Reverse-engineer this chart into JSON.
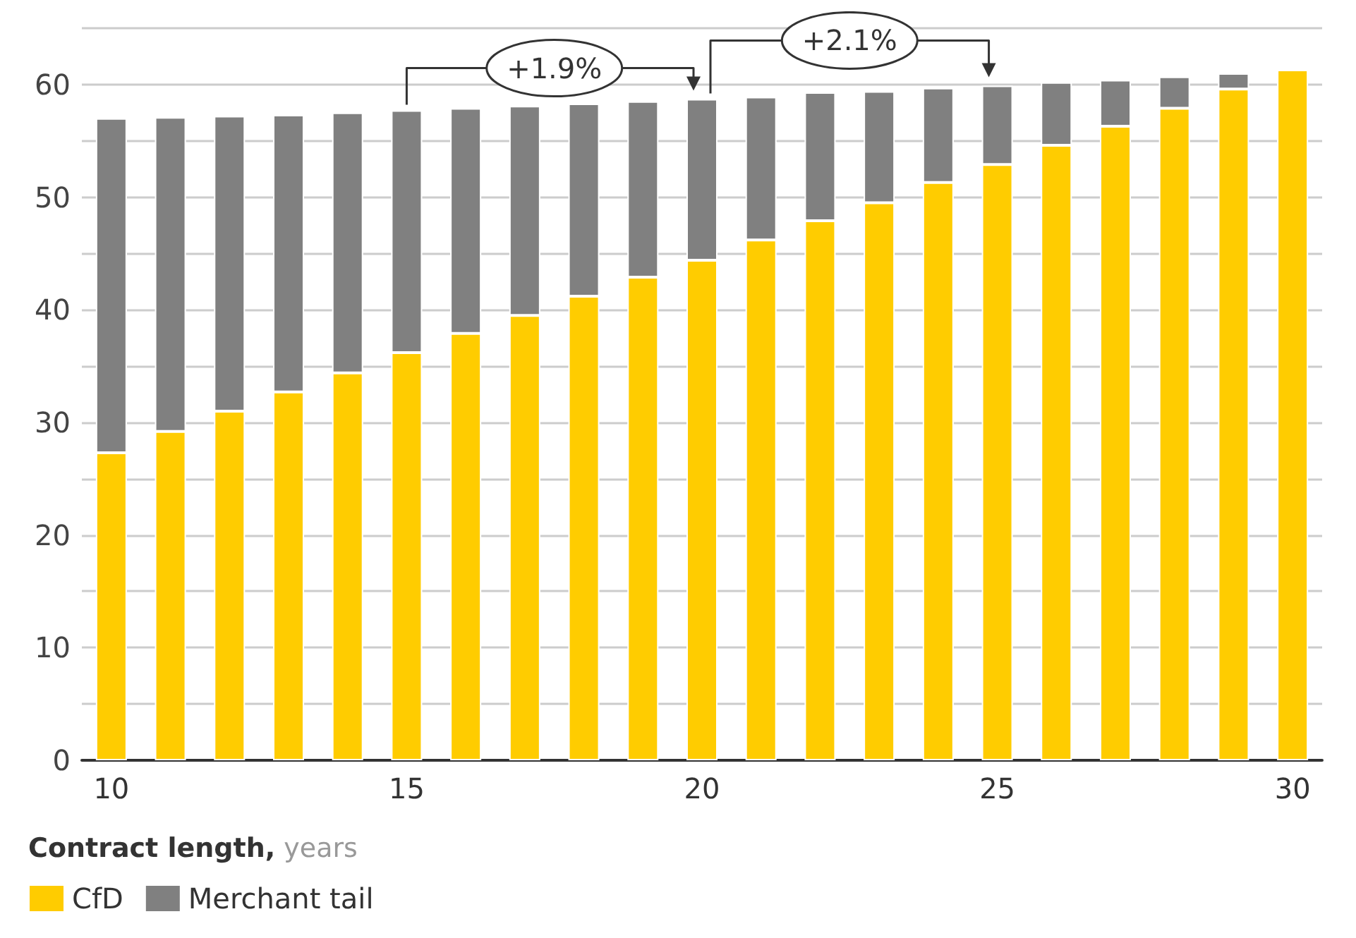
{
  "chart_data": {
    "type": "bar",
    "stacked": true,
    "xlabel": "Contract length, years",
    "categories": [
      "10",
      null,
      null,
      null,
      null,
      "15",
      null,
      null,
      null,
      null,
      "20",
      null,
      null,
      null,
      null,
      "25",
      null,
      null,
      null,
      null,
      "30"
    ],
    "series": [
      {
        "name": "CfD",
        "color": "#ffcc00",
        "values": [
          27.3,
          29.2,
          31.0,
          32.7,
          34.4,
          36.2,
          37.9,
          39.5,
          41.2,
          42.9,
          44.4,
          46.2,
          47.9,
          49.5,
          51.3,
          52.9,
          54.6,
          56.3,
          57.9,
          59.6,
          61.3
        ]
      },
      {
        "name": "Merchant tail",
        "color": "#808080",
        "values": [
          29.7,
          27.9,
          26.2,
          24.6,
          23.1,
          21.5,
          20.0,
          18.6,
          17.1,
          15.6,
          14.3,
          12.7,
          11.4,
          9.9,
          8.4,
          7.0,
          5.6,
          4.1,
          2.8,
          1.4,
          null
        ]
      }
    ],
    "ylim": [
      0,
      65
    ],
    "yticks": [
      0,
      {
        "value": 5,
        "label": null
      },
      10,
      {
        "value": 15,
        "label": null
      },
      20,
      {
        "value": 25,
        "label": null
      },
      30,
      {
        "value": 35,
        "label": null
      },
      40,
      {
        "value": 45,
        "label": null
      },
      50,
      {
        "value": 55,
        "label": null
      },
      60,
      {
        "value": 65,
        "label": null
      }
    ],
    "grid": "y",
    "legend": "bottom left",
    "annotations": [
      "+1.9%",
      "+2.1%"
    ]
  }
}
